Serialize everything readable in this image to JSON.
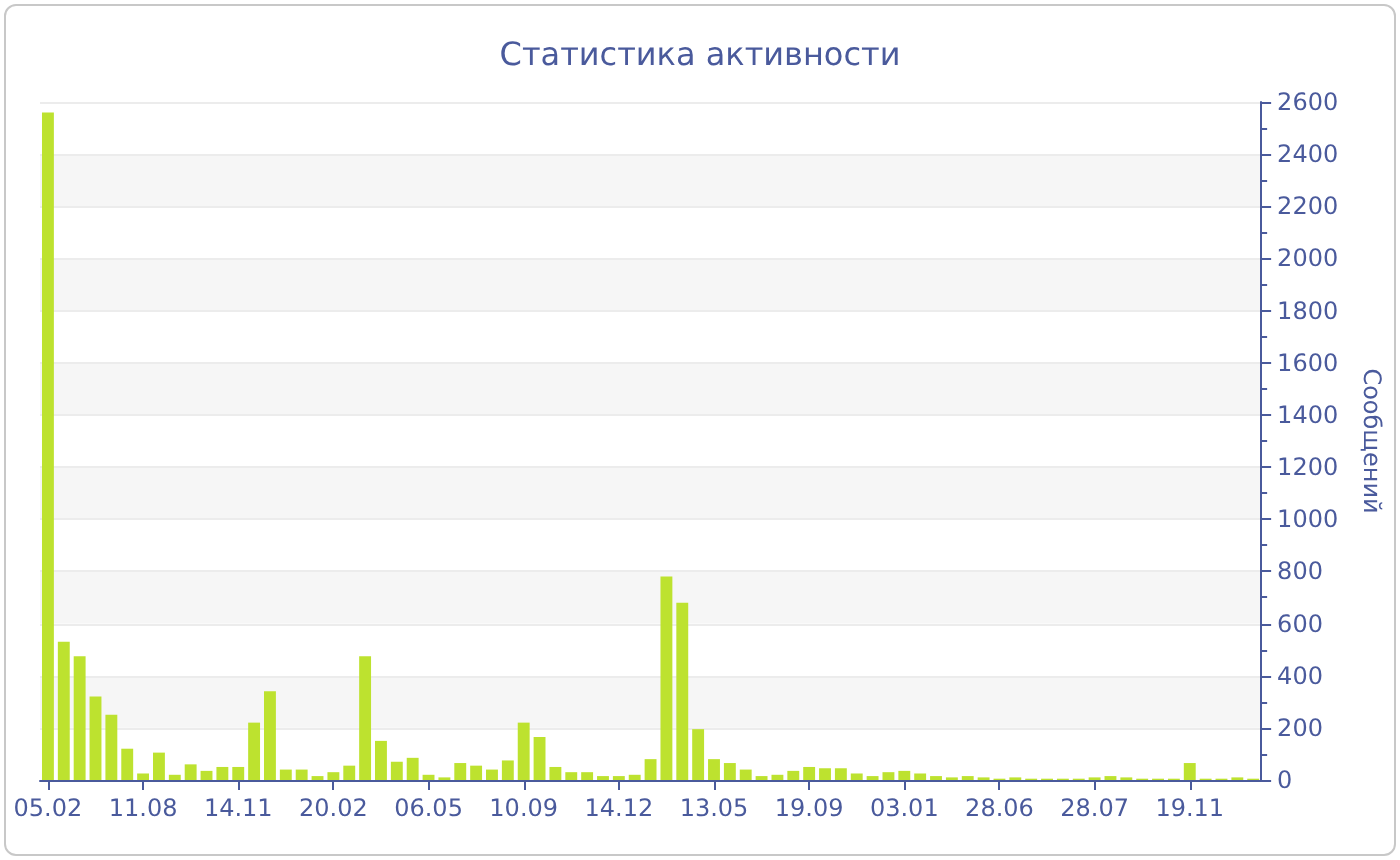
{
  "chart_data": {
    "type": "bar",
    "title": "Статистика активности",
    "ylabel": "Сообщений",
    "color": "#bde22f",
    "categories": [
      "05.02",
      null,
      null,
      null,
      null,
      null,
      "11.08",
      null,
      null,
      null,
      null,
      null,
      "14.11",
      null,
      null,
      null,
      null,
      null,
      "20.02",
      null,
      null,
      null,
      null,
      null,
      "06.05",
      null,
      null,
      null,
      null,
      null,
      "10.09",
      null,
      null,
      null,
      null,
      null,
      "14.12",
      null,
      null,
      null,
      null,
      null,
      "13.05",
      null,
      null,
      null,
      null,
      null,
      "19.09",
      null,
      null,
      null,
      null,
      null,
      "03.01",
      null,
      null,
      null,
      null,
      null,
      "28.06",
      null,
      null,
      null,
      null,
      null,
      "28.07",
      null,
      null,
      null,
      null,
      null,
      "19.11",
      null,
      null,
      null,
      null
    ],
    "values": [
      2560,
      530,
      475,
      320,
      250,
      120,
      25,
      105,
      20,
      60,
      35,
      50,
      50,
      220,
      340,
      40,
      40,
      15,
      30,
      55,
      475,
      150,
      70,
      85,
      20,
      10,
      65,
      55,
      40,
      75,
      220,
      165,
      50,
      30,
      30,
      15,
      15,
      20,
      80,
      780,
      680,
      195,
      80,
      65,
      40,
      15,
      20,
      35,
      50,
      45,
      45,
      25,
      15,
      30,
      35,
      25,
      15,
      10,
      15,
      10,
      5,
      10,
      5,
      5,
      5,
      5,
      10,
      15,
      10,
      5,
      5,
      5,
      65,
      5,
      5,
      10,
      5
    ],
    "ylim": [
      0,
      2600
    ],
    "yticks": [
      0,
      200,
      400,
      600,
      800,
      1000,
      1200,
      1400,
      1600,
      1800,
      2000,
      2200,
      2400,
      2600
    ],
    "grid": true
  }
}
